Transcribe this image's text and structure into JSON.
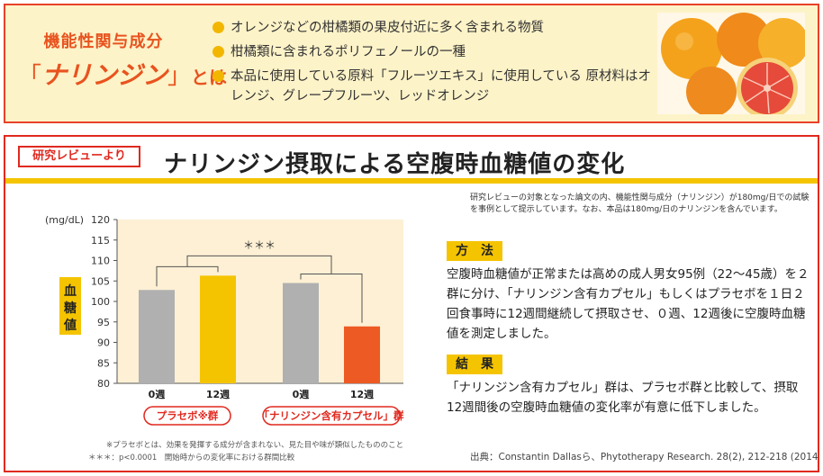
{
  "top_panel": {
    "title_line1": "機能性関与成分",
    "bracket_open": "「",
    "name": "ナリンジン",
    "bracket_close": "」",
    "title_suffix": "とは",
    "bullets": [
      "オレンジなどの柑橘類の果皮付近に多く含まれる物質",
      "柑橘類に含まれるポリフェノールの一種",
      "本品に使用している原料「フルーツエキス」に使用している 原材料はオレンジ、グレープフルーツ、レッドオレンジ"
    ],
    "colors": {
      "accent": "#e8531f",
      "bullet": "#f2b600",
      "background": "#fdf3c8",
      "border": "#e8412a"
    }
  },
  "bottom_panel": {
    "tag": "研究レビューより",
    "heading": "ナリンジン摂取による空腹時血糖値の変化",
    "note_top": "研究レビューの対象となった論文の内、機能性関与成分（ナリンジン）が180mg/日での試験を事例として提示しています。なお、本品は180mg/日のナリンジンを含んでいます。",
    "method_label": "方　法",
    "method_text": "空腹時血糖値が正常または高めの成人男女95例（22～45歳）を２群に分け、「ナリンジン含有カプセル」もしくはプラセボを１日２回食事時に12週間継続して摂取させ、０週、12週後に空腹時血糖値を測定しました。",
    "result_label": "結　果",
    "result_text": "「ナリンジン含有カプセル」群は、プラセボ群と比較して、摂取12週間後の空腹時血糖値の変化率が有意に低下しました。",
    "source": "出典：Constantin Dallasら、Phytotherapy Research. 28(2), 212-218 (2014)",
    "footnote1": "※プラセボとは、効果を発揮する成分が含まれない、見た目や味が類似したもののこと",
    "footnote2": "＊＊＊：p<0.0001　開始時からの変化率における群間比較",
    "colors": {
      "border": "#e0291f",
      "yellow": "#f5c400"
    }
  },
  "chart_data": {
    "type": "bar",
    "ylabel_unit": "(mg/dL)",
    "ylabel": "血糖値",
    "ylim": [
      80,
      120
    ],
    "yticks": [
      80,
      85,
      90,
      95,
      100,
      105,
      110,
      115,
      120
    ],
    "groups": [
      {
        "name": "プラセボ群",
        "label_display": "プラセボ※群",
        "color_0": "#b0b0b0",
        "color_12": "#f5c400",
        "bars": [
          {
            "x": "0週",
            "value": 102.8
          },
          {
            "x": "12週",
            "value": 106.3
          }
        ]
      },
      {
        "name": "「ナリンジン含有カプセル」群",
        "label_display": "「ナリンジン含有カプセル」群",
        "color_0": "#b0b0b0",
        "color_12": "#ee5a24",
        "bars": [
          {
            "x": "0週",
            "value": 104.5
          },
          {
            "x": "12週",
            "value": 93.9
          }
        ]
      }
    ],
    "significance": "＊＊＊",
    "grid": false
  }
}
